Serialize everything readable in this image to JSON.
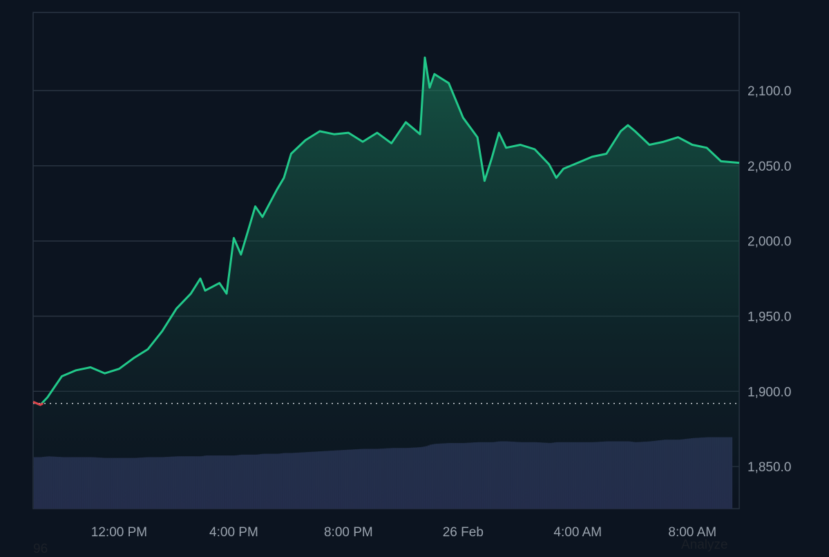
{
  "chart_data": {
    "type": "area",
    "colors": {
      "background": "#0c1420",
      "line": "#22c98a",
      "line_below_baseline": "#e0424a",
      "grid": "#2a3442",
      "volume": "#2b3558",
      "baseline": "#c8ccd2",
      "tick_text": "#9aa3ae"
    },
    "grid": true,
    "yaxis_position": "right",
    "ylim": [
      1822,
      2152
    ],
    "yticks": [
      "1,850.0",
      "1,900.0",
      "1,950.0",
      "2,000.0",
      "2,050.0",
      "2,100.0"
    ],
    "ytick_values": [
      1850,
      1900,
      1950,
      2000,
      2050,
      2100
    ],
    "xticks": [
      "12:00 PM",
      "4:00 PM",
      "8:00 PM",
      "26 Feb",
      "4:00 AM",
      "8:00 AM"
    ],
    "xlim": [
      "25 Feb 09:00",
      "26 Feb 09:38"
    ],
    "baseline": 1892,
    "series": [
      {
        "x": [
          "25 Feb 09:00",
          "25 Feb 09:15",
          "25 Feb 09:30",
          "25 Feb 10:00",
          "25 Feb 10:30",
          "25 Feb 11:00",
          "25 Feb 11:30",
          "25 Feb 12:00",
          "25 Feb 12:30",
          "25 Feb 13:00",
          "25 Feb 13:30",
          "25 Feb 14:00",
          "25 Feb 14:30",
          "25 Feb 14:50",
          "25 Feb 15:00",
          "25 Feb 15:30",
          "25 Feb 15:45",
          "25 Feb 16:00",
          "25 Feb 16:15",
          "25 Feb 16:30",
          "25 Feb 16:45",
          "25 Feb 17:00",
          "25 Feb 17:30",
          "25 Feb 17:45",
          "25 Feb 18:00",
          "25 Feb 18:30",
          "25 Feb 19:00",
          "25 Feb 19:30",
          "25 Feb 20:00",
          "25 Feb 20:30",
          "25 Feb 21:00",
          "25 Feb 21:30",
          "25 Feb 22:00",
          "25 Feb 22:30",
          "25 Feb 22:40",
          "25 Feb 22:50",
          "25 Feb 23:00",
          "25 Feb 23:30",
          "26 Feb 00:00",
          "26 Feb 00:30",
          "26 Feb 00:45",
          "26 Feb 01:00",
          "26 Feb 01:15",
          "26 Feb 01:30",
          "26 Feb 02:00",
          "26 Feb 02:30",
          "26 Feb 03:00",
          "26 Feb 03:15",
          "26 Feb 03:30",
          "26 Feb 04:00",
          "26 Feb 04:30",
          "26 Feb 05:00",
          "26 Feb 05:30",
          "26 Feb 05:45",
          "26 Feb 06:00",
          "26 Feb 06:30",
          "26 Feb 07:00",
          "26 Feb 07:30",
          "26 Feb 08:00",
          "26 Feb 08:30",
          "26 Feb 09:00",
          "26 Feb 09:38"
        ],
        "values": [
          1893,
          1891,
          1896,
          1910,
          1914,
          1916,
          1912,
          1915,
          1922,
          1928,
          1940,
          1955,
          1965,
          1975,
          1967,
          1972,
          1965,
          2002,
          1991,
          2007,
          2023,
          2016,
          2034,
          2042,
          2058,
          2067,
          2073,
          2071,
          2072,
          2066,
          2072,
          2065,
          2079,
          2071,
          2122,
          2102,
          2111,
          2105,
          2082,
          2069,
          2040,
          2055,
          2072,
          2062,
          2064,
          2061,
          2051,
          2042,
          2048,
          2052,
          2056,
          2058,
          2073,
          2077,
          2073,
          2064,
          2066,
          2069,
          2064,
          2062,
          2053,
          2052
        ],
        "volume": [
          62,
          62,
          63,
          62,
          62,
          62,
          61,
          61,
          61,
          62,
          62,
          63,
          63,
          63,
          64,
          64,
          64,
          64,
          65,
          65,
          65,
          66,
          66,
          67,
          67,
          68,
          69,
          70,
          71,
          72,
          72,
          73,
          73,
          74,
          75,
          77,
          78,
          79,
          79,
          80,
          80,
          80,
          81,
          81,
          80,
          80,
          79,
          80,
          80,
          80,
          80,
          81,
          81,
          81,
          80,
          81,
          83,
          83,
          85,
          86,
          86,
          86
        ]
      }
    ]
  },
  "footer": {
    "left_text": "96",
    "right_text": "Analyze"
  }
}
